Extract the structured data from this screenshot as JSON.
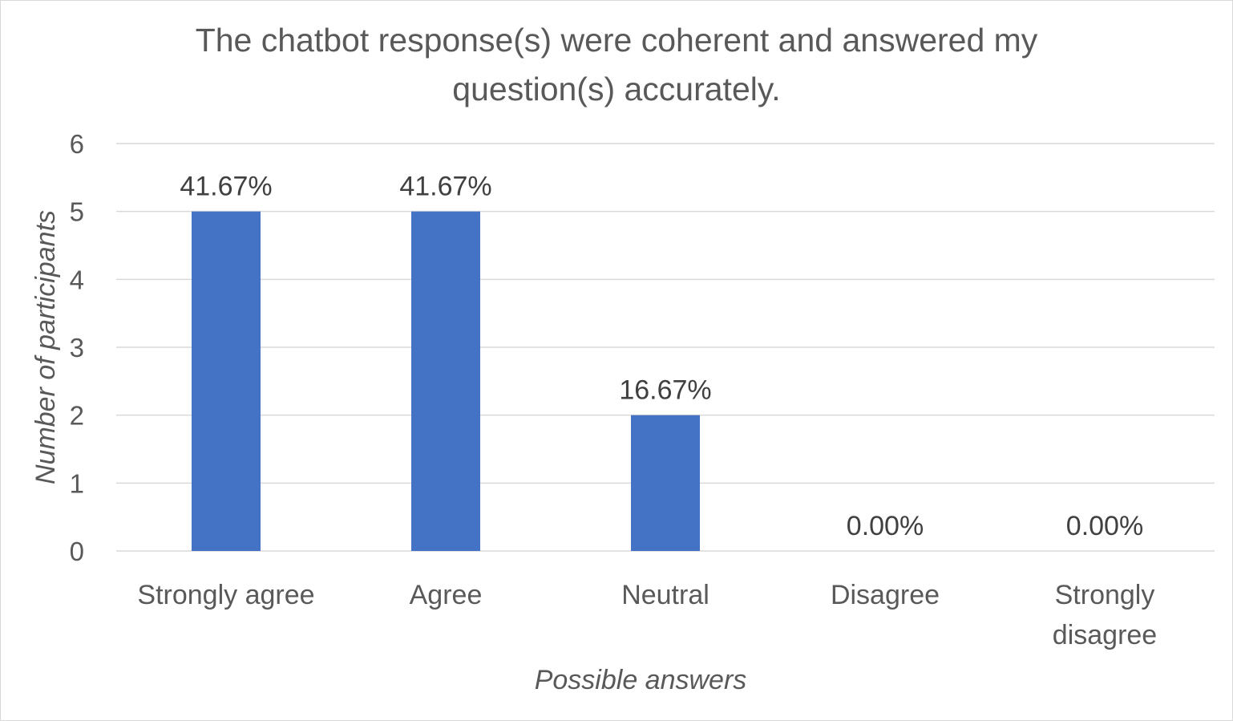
{
  "chart_data": {
    "type": "bar",
    "title_lines": [
      "The chatbot response(s) were coherent and answered my",
      "question(s) accurately."
    ],
    "xlabel": "Possible answers",
    "ylabel": "Number of participants",
    "categories": [
      {
        "lines": [
          "Strongly agree"
        ]
      },
      {
        "lines": [
          "Agree"
        ]
      },
      {
        "lines": [
          "Neutral"
        ]
      },
      {
        "lines": [
          "Disagree"
        ]
      },
      {
        "lines": [
          "Strongly",
          "disagree"
        ]
      }
    ],
    "values": [
      5,
      5,
      2,
      0,
      0
    ],
    "data_labels": [
      "41.67%",
      "41.67%",
      "16.67%",
      "0.00%",
      "0.00%"
    ],
    "ylim": [
      0,
      6
    ],
    "yticks": [
      "0",
      "1",
      "2",
      "3",
      "4",
      "5",
      "6"
    ],
    "grid": true,
    "legend": "none",
    "bar_color": "#4472c4"
  }
}
